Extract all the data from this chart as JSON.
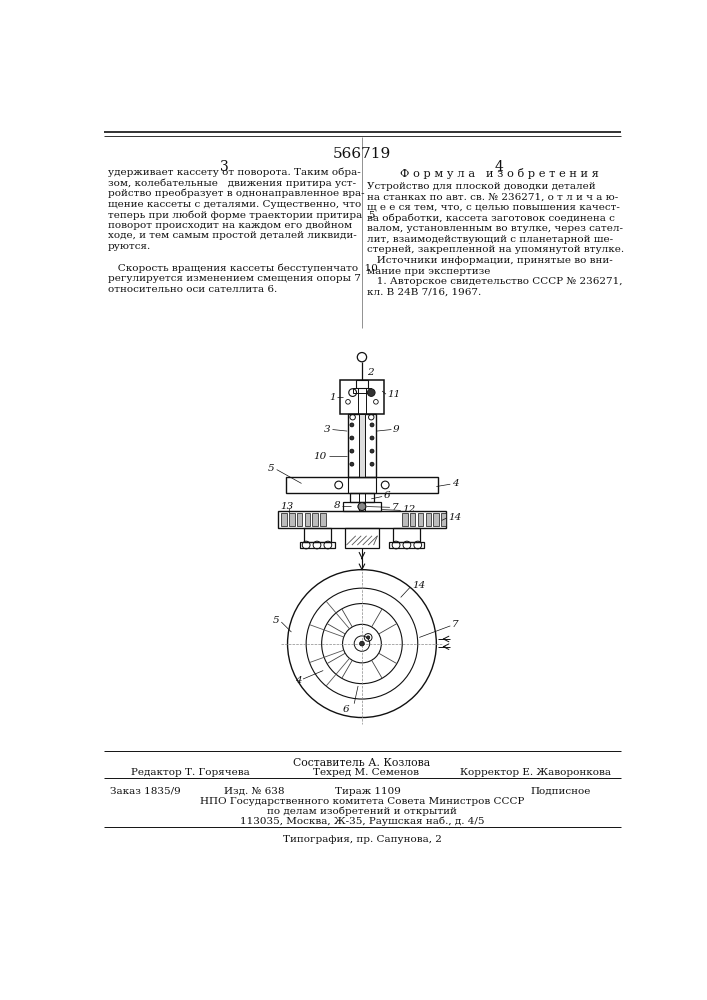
{
  "patent_number": "566719",
  "bg": "#ffffff",
  "text_color": "#111111",
  "line_color": "#111111",
  "page_col_left": "3",
  "page_col_right": "4",
  "title_formula": "Ф о р м у л а   и з о б р е т е н и я",
  "left_text_lines": [
    "удерживает кассету от поворота. Таким обра-",
    "зом, колебательные   движения притира уст-",
    "ройство преобразует в однонаправленное вра-",
    "щение кассеты с деталями. Существенно, что",
    "теперь при любой форме траектории притира  5",
    "поворот происходит на каждом его двойном",
    "ходе, и тем самым простой деталей ликвиди-",
    "руются.",
    "",
    "   Скорость вращения кассеты бесступенчато  10",
    "регулируется изменением смещения опоры 7",
    "относительно оси сателлита 6."
  ],
  "right_text_lines": [
    "Устройство для плоской доводки деталей",
    "на станках по авт. св. № 236271, о т л и ч а ю-",
    "щ е е ся тем, что, с целью повышения качест-",
    "ва обработки, кассета заготовок соединена с",
    "валом, установленным во втулке, через сател-",
    "лит, взаимодействующий с планетарной ше-",
    "стерней, закрепленной на упомянутой втулке.",
    "   Источники информации, принятые во вни-",
    "мание при экспертизе",
    "   1. Авторское свидетельство СССР № 236271,",
    "кл. В 24В 7/16, 1967."
  ],
  "footer_comp": "Составитель А. Козлова",
  "footer_ed": "Редактор Т. Горячева",
  "footer_tech": "Техред М. Семенов",
  "footer_corr": "Корректор Е. Жаворонкова",
  "footer_order": "Заказ 1835/9",
  "footer_izd": "Изд. № 638",
  "footer_tirazh": "Тираж 1109",
  "footer_podp": "Подписное",
  "footer_npo": "НПО Государственного комитета Совета Министров СССР",
  "footer_dela": "по делам изобретений и открытий",
  "footer_addr": "113035, Москва, Ж-35, Раушская наб., д. 4/5",
  "footer_tipo": "Типография, пр. Сапунова, 2"
}
